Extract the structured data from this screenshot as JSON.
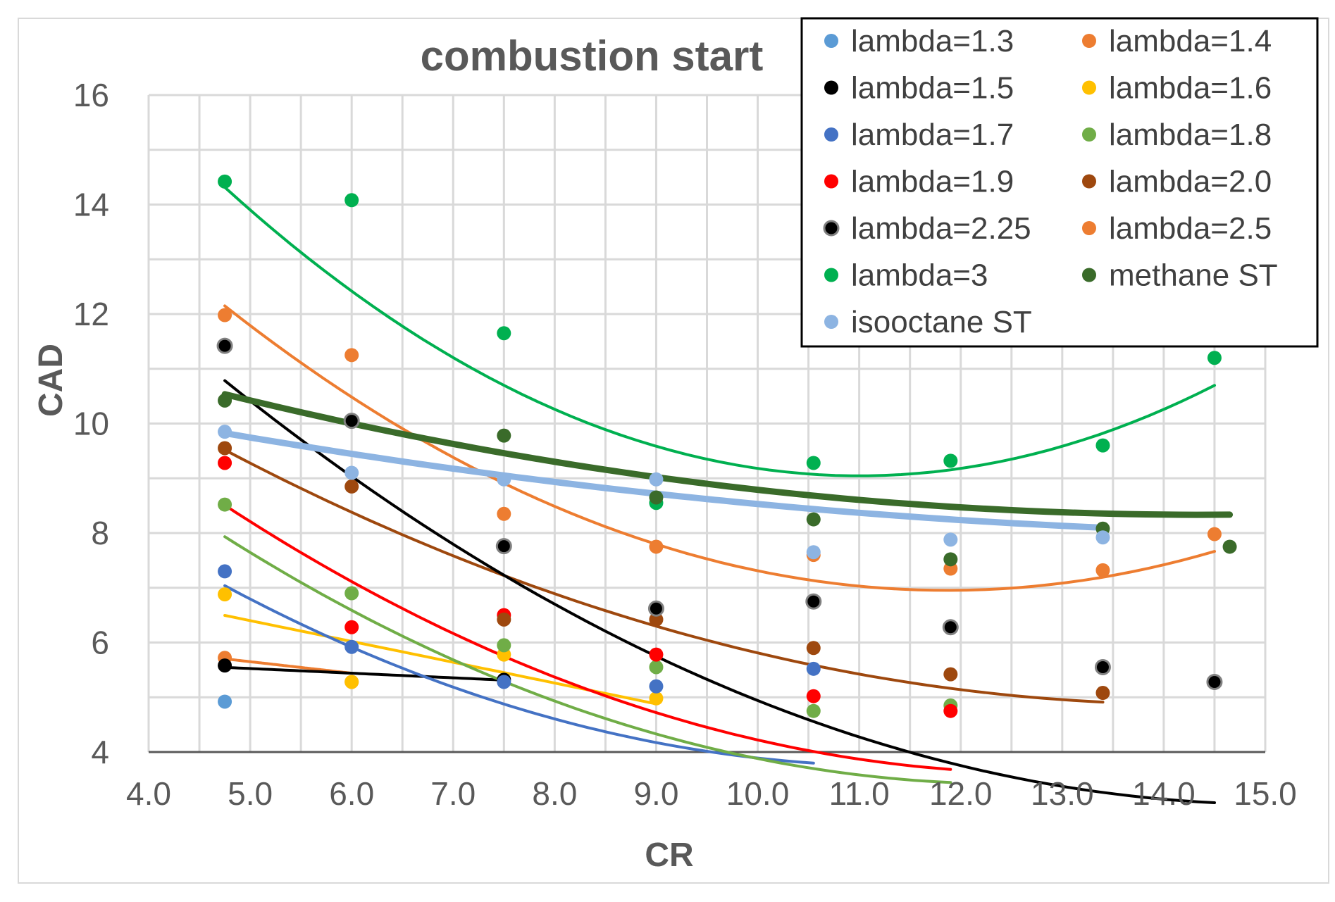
{
  "chart_data": {
    "type": "scatter",
    "title": "combustion start",
    "xlabel": "CR",
    "ylabel": "CAD",
    "xlim": [
      4.0,
      15.0
    ],
    "ylim": [
      4,
      16
    ],
    "x_ticks": [
      "4.0",
      "5.0",
      "6.0",
      "7.0",
      "8.0",
      "9.0",
      "10.0",
      "11.0",
      "12.0",
      "13.0",
      "14.0",
      "15.0"
    ],
    "y_ticks": [
      "4",
      "6",
      "8",
      "10",
      "12",
      "14",
      "16"
    ],
    "grid": true,
    "legend_position": "top-right",
    "trendline": "polynomial order 2",
    "series": [
      {
        "name": "lambda=1.3",
        "color": "#5B9BD5",
        "x": [
          4.75
        ],
        "y": [
          4.92
        ],
        "fit": [
          0,
          0,
          0
        ],
        "fit_range": [
          4.75,
          4.75
        ],
        "line_width": 0
      },
      {
        "name": "lambda=1.4",
        "color": "#ED7D31",
        "x": [
          4.75,
          6.0
        ],
        "y": [
          5.72,
          5.28
        ],
        "fit": [
          6.7,
          -0.21,
          0
        ],
        "fit_range": [
          4.75,
          6.0
        ],
        "line_width": 4
      },
      {
        "name": "lambda=1.5",
        "color": "#000000",
        "x": [
          4.75,
          7.5
        ],
        "y": [
          5.58,
          5.32
        ],
        "fit": [
          5.95,
          -0.085,
          0
        ],
        "fit_range": [
          4.75,
          7.5
        ],
        "line_width": 4
      },
      {
        "name": "lambda=1.6",
        "color": "#FFC000",
        "x": [
          4.75,
          6.0,
          7.5,
          9.0
        ],
        "y": [
          6.88,
          5.28,
          5.78,
          4.98
        ],
        "fit": [
          8.3,
          -0.38,
          0
        ],
        "fit_range": [
          4.75,
          9.0
        ],
        "line_width": 4
      },
      {
        "name": "lambda=1.7",
        "color": "#4472C4",
        "x": [
          4.75,
          6.0,
          7.5,
          9.0,
          10.55
        ],
        "y": [
          7.3,
          5.92,
          5.28,
          5.2,
          5.52
        ],
        "fit": [
          13.43,
          -1.7,
          0.0746
        ],
        "fit_range": [
          4.75,
          10.55
        ],
        "line_width": 4
      },
      {
        "name": "lambda=1.8",
        "color": "#70AD47",
        "x": [
          4.75,
          6.0,
          7.5,
          9.0,
          10.55,
          11.9
        ],
        "y": [
          8.52,
          6.9,
          5.95,
          5.55,
          4.75,
          4.85
        ],
        "fit": [
          15.2,
          -1.89,
          0.0758
        ],
        "fit_range": [
          4.75,
          11.9
        ],
        "line_width": 4
      },
      {
        "name": "lambda=1.9",
        "color": "#FF0000",
        "x": [
          4.75,
          6.0,
          7.5,
          9.0,
          10.55,
          11.9
        ],
        "y": [
          9.28,
          6.28,
          6.5,
          5.78,
          5.02,
          4.75
        ],
        "fit": [
          15.93,
          -1.917,
          0.0746
        ],
        "fit_range": [
          4.75,
          11.9
        ],
        "line_width": 4
      },
      {
        "name": "lambda=2.0",
        "color": "#9E480E",
        "x": [
          4.75,
          6.0,
          7.5,
          9.0,
          10.55,
          11.9,
          13.4
        ],
        "y": [
          9.55,
          8.85,
          6.42,
          6.42,
          5.9,
          5.42,
          5.08
        ],
        "fit": [
          15.3,
          -1.46,
          0.0511
        ],
        "fit_range": [
          4.75,
          13.4
        ],
        "line_width": 4
      },
      {
        "name": "lambda=2.25",
        "color": "#000000",
        "x": [
          4.75,
          6.0,
          7.5,
          9.0,
          10.55,
          11.9,
          13.4,
          14.5
        ],
        "y": [
          11.42,
          10.05,
          7.76,
          6.62,
          6.75,
          6.28,
          5.55,
          5.28
        ],
        "fit": [
          19.47,
          -2.169,
          0.0716
        ],
        "fit_range": [
          4.75,
          14.5
        ],
        "line_width": 4
      },
      {
        "name": "lambda=2.5",
        "color": "#ED7D31",
        "x": [
          4.75,
          6.0,
          7.5,
          9.0,
          10.55,
          11.9,
          13.4,
          14.5
        ],
        "y": [
          11.98,
          11.25,
          8.35,
          7.75,
          7.6,
          7.35,
          7.32,
          7.98
        ],
        "fit": [
          21.4,
          -2.435,
          0.1026
        ],
        "fit_range": [
          4.75,
          14.5
        ],
        "line_width": 4
      },
      {
        "name": "lambda=3",
        "color": "#00B050",
        "x": [
          4.75,
          6.0,
          7.5,
          9.0,
          10.55,
          11.9,
          13.4,
          14.5
        ],
        "y": [
          14.42,
          14.08,
          11.65,
          8.55,
          9.28,
          9.32,
          9.6,
          11.2
        ],
        "fit": [
          25.37,
          -2.968,
          0.1349
        ],
        "fit_range": [
          4.75,
          14.5
        ],
        "line_width": 4
      },
      {
        "name": "methane ST",
        "color": "#3A6B2A",
        "x": [
          4.75,
          7.5,
          9.0,
          10.55,
          11.9,
          13.4,
          14.65
        ],
        "y": [
          10.42,
          9.78,
          8.65,
          8.25,
          7.52,
          8.08,
          7.75
        ],
        "fit": [
          13.24,
          -0.682,
          0.0237
        ],
        "fit_range": [
          4.75,
          14.65
        ],
        "line_width": 9
      },
      {
        "name": "isooctane ST",
        "color": "#8DB4E2",
        "x": [
          4.75,
          6.0,
          7.5,
          9.0,
          10.55,
          11.9,
          13.4
        ],
        "y": [
          9.85,
          9.1,
          8.98,
          8.98,
          7.65,
          7.88,
          7.92
        ],
        "fit": [
          11.65,
          -0.45,
          0.0138
        ],
        "fit_range": [
          4.75,
          13.4
        ],
        "line_width": 9
      }
    ]
  }
}
